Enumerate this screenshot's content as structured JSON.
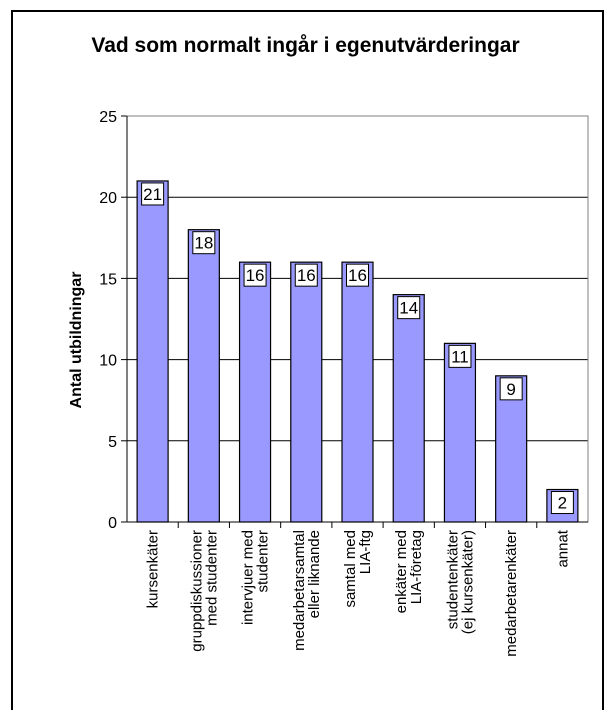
{
  "chart_data": {
    "type": "bar",
    "title": "Vad som normalt ingår i egenutvärderingar",
    "ylabel": "Antal utbildningar",
    "xlabel": "",
    "ylim": [
      0,
      25
    ],
    "yticks": [
      "0",
      "5",
      "10",
      "15",
      "20",
      "25"
    ],
    "grid": true,
    "categories": [
      [
        "kursenkäter"
      ],
      [
        "gruppdiskussioner",
        "med studenter"
      ],
      [
        "intervjuer med",
        "studenter"
      ],
      [
        "medarbetarsamtal",
        "eller liknande"
      ],
      [
        "samtal med",
        "LIA-ftg"
      ],
      [
        "enkäter med",
        "LIA-företag"
      ],
      [
        "studentenkäter",
        "(ej kursenkäter)"
      ],
      [
        "medarbetarenkäter"
      ],
      [
        "annat"
      ]
    ],
    "values": [
      21,
      18,
      16,
      16,
      16,
      14,
      11,
      9,
      2
    ],
    "colors": {
      "bar": "#9999ff",
      "bar_edge": "#000000",
      "label_bg": "#ffffff"
    }
  }
}
